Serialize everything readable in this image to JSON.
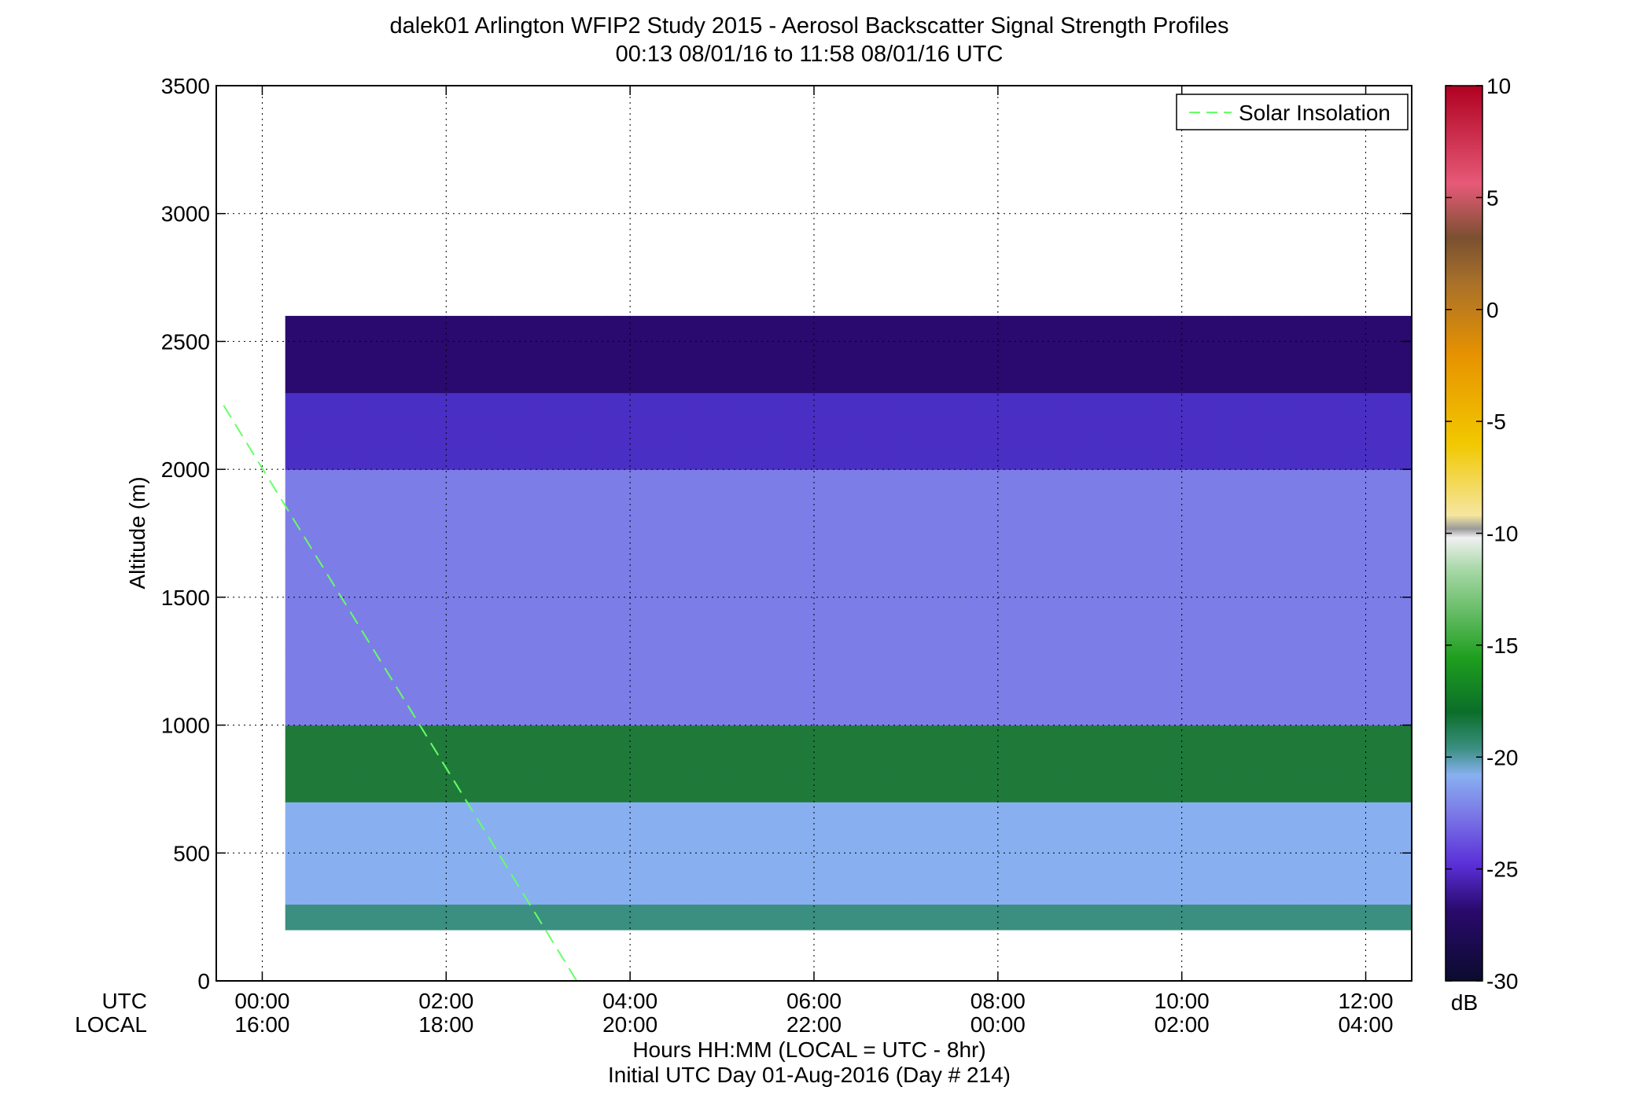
{
  "chart_data": {
    "type": "heatmap",
    "title": "dalek01 Arlington WFIP2 Study 2015 - Aerosol Backscatter Signal Strength Profiles",
    "subtitle": "00:13 08/01/16 to 11:58 08/01/16  UTC",
    "ylabel": "Altitude (m)",
    "xlabel": "Hours HH:MM  (LOCAL = UTC - 8hr)",
    "xlabel2": "Initial UTC Day 01-Aug-2016 (Day # 214)",
    "x_row_labels": [
      "UTC",
      "LOCAL"
    ],
    "xlim_hours": [
      -0.5,
      12.5
    ],
    "ylim": [
      0,
      3500
    ],
    "grid": true,
    "x_ticks": [
      {
        "hour": 0,
        "utc": "00:00",
        "local": "16:00"
      },
      {
        "hour": 2,
        "utc": "02:00",
        "local": "18:00"
      },
      {
        "hour": 4,
        "utc": "04:00",
        "local": "20:00"
      },
      {
        "hour": 6,
        "utc": "06:00",
        "local": "22:00"
      },
      {
        "hour": 8,
        "utc": "08:00",
        "local": "00:00"
      },
      {
        "hour": 10,
        "utc": "10:00",
        "local": "02:00"
      },
      {
        "hour": 12,
        "utc": "12:00",
        "local": "04:00"
      }
    ],
    "y_ticks": [
      "0",
      "500",
      "1000",
      "1500",
      "2000",
      "2500",
      "3000",
      "3500"
    ],
    "legend": {
      "entry": "Solar Insolation",
      "placement": "top-right",
      "color": "#66ff66"
    },
    "solar_insolation_line": [
      {
        "hour": -0.42,
        "alt": 2250
      },
      {
        "hour": 3.42,
        "alt": 0
      }
    ],
    "colorbar": {
      "unit": "dB",
      "range": [
        -30,
        10
      ],
      "ticks": [
        "10",
        "5",
        "0",
        "-5",
        "-10",
        "-15",
        "-20",
        "-25",
        "-30"
      ]
    },
    "x_start_hour": 0.25,
    "x_step_hours": 0.25,
    "y_start_m": 200,
    "y_step_m": 100,
    "cells": [
      "DDDDDDDDDDDDDDDDDDDDDDDDDDDDDDDDDDDDDDDDDDDDDDDDD",
      "FFFFFFFFFFFFFFFFFFFFFFFFFFFFFFFFFFFFFFFFFFFFFFFFF",
      "FFFFFFFFFFFFFFFFFFFFFFFFFFFFFFFFFFFFFFFFFFFFFFFFF",
      "FFFFFFFFFFFFFFFFFFFFFFFFFFFFFFFFFFFFFFFFFFFFFFFFF",
      "FFFFFFFFFFFFFFFFFFFFFFFFFFFFFFFFFFFFFFFFFFFFFFFFF",
      "EEEEEEEEEEEEEEEEEEEEEEEEEEEEEEEEEEEEEEEEEEEEEEEEE",
      "EEEEEEEEEEEEEEEEEEEEEEEEEEEEEEEEEEEEEEEEEEEEEEEEE",
      "EEEEEEEEEEEEEEEEEEEEEEEEEEEEEEEEEEEEEEEEEEEEEEEEE",
      "CCCCCCCCCCCCCCCCCCCCCCCCCCCCCCCCCCCCCCCCCCCCCCCCC",
      "CCCCCCCCCCCCCCCCCCCCCCCCCCCCCCCCCCCCCCCCCCCCCCCCC",
      "CCCCCCCCCCCCCCCCCCCCCCCCCCCCCCCCCCCCCCCCCCCCCCCCC",
      "CCCCCCCCCCCCCCCCCCCCCCCCCCCCCCCCCCCCCCCCCCCCCCCCC",
      "CCCCCCCCCCCCCCCCCCCCCCCCCCCCCCCCCCCCCCCCCCCCCCCCC",
      "CCCCCCCCCCCCCCCCCCCCCCCCCCCCCCCCCCCCCCCCCCCCCCCCC",
      "CCCCCCCCCCCCCCCCCCCCCCCCCCCCCCCCCCCCCCCCCCCCCCCCC",
      "CCCCCCCCCCCCCCCCCCCCCCCCCCCCCCCCCCCCCCCCCCCCCCCCC",
      "CCCCCCCCCCCCCCCCCCCCCCCCCCCCCCCCCCCCCCCCCCCCCCCCC",
      "CCCCCCCCCCCCCCCCCCCCCCCCCCCCCCCCCCCCCCCCCCCCCCCCC",
      "BBBBBBBBBBBBBBBBBBBBBBBBBBBBBBBBBBBBBBBBBBBBBBBBB",
      "BBBBBBBBBBBBBBBBBBBBBBBBBBBBBBBBBBBBBBBBBBBBBBBBB",
      "BBBBBBBBBBBBBBBBBBBBBBBBBBBBBBBBBBBBBBBBBBBBBBBBB",
      "AAAAAAAAAAAAAAAAAAAAAAAAAAAAAAAAAAAAAAAAAAAAAAAAA",
      "AAAAAAAAAAAAAAAAAAAAAAAAAAAAAAAAAAAAAAAAAAAAAAAAA",
      "AAAAAAAAAAAAAAAAAAAAAAAAAAAAAAAAAAAAAAAAAAAAAAAAA"
    ],
    "cell_colors": {
      "A": "#2a0a6e",
      "B": "#4a2fc4",
      "C": "#7d7de8",
      "D": "#3a8f80",
      "E": "#1f7a3a",
      "F": "#88b0f0"
    }
  }
}
